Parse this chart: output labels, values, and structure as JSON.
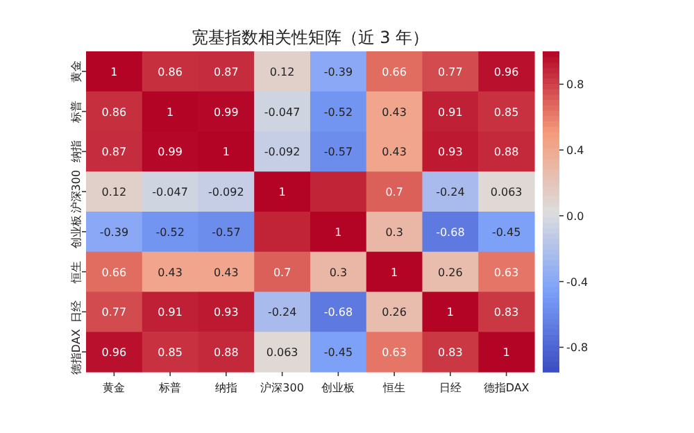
{
  "chart_data": {
    "type": "heatmap",
    "title": "宽基指数相关性矩阵（近 3 年）",
    "categories": [
      "黄金",
      "标普",
      "纳指",
      "沪深300",
      "创业板",
      "恒生",
      "日经",
      "德指DAX"
    ],
    "y_categories": [
      "黄金",
      "标普",
      "纳指",
      "沪深300",
      "创业板",
      "恒生",
      "日经",
      "德指DAX"
    ],
    "cells": [
      [
        1,
        0.86,
        0.87,
        0.12,
        -0.39,
        0.66,
        0.77,
        0.96
      ],
      [
        0.86,
        1,
        0.99,
        -0.047,
        -0.52,
        0.43,
        0.91,
        0.85
      ],
      [
        0.87,
        0.99,
        1,
        -0.092,
        -0.57,
        0.43,
        0.93,
        0.88
      ],
      [
        0.12,
        -0.047,
        -0.092,
        1,
        0.9,
        0.7,
        -0.24,
        0.063
      ],
      [
        -0.39,
        -0.52,
        -0.57,
        0.9,
        1,
        0.3,
        -0.68,
        -0.45
      ],
      [
        0.66,
        0.43,
        0.43,
        0.7,
        0.3,
        1,
        0.26,
        0.63
      ],
      [
        0.77,
        0.91,
        0.93,
        -0.24,
        -0.68,
        0.26,
        1,
        0.83
      ],
      [
        0.96,
        0.85,
        0.88,
        0.063,
        -0.45,
        0.63,
        0.83,
        1
      ]
    ],
    "cell_labels": [
      [
        "1",
        "0.86",
        "0.87",
        "0.12",
        "-0.39",
        "0.66",
        "0.77",
        "0.96"
      ],
      [
        "0.86",
        "1",
        "0.99",
        "-0.047",
        "-0.52",
        "0.43",
        "0.91",
        "0.85"
      ],
      [
        "0.87",
        "0.99",
        "1",
        "-0.092",
        "-0.57",
        "0.43",
        "0.93",
        "0.88"
      ],
      [
        "0.12",
        "-0.047",
        "-0.092",
        "1",
        null,
        "0.7",
        "-0.24",
        "0.063"
      ],
      [
        "-0.39",
        "-0.52",
        "-0.57",
        null,
        "1",
        "0.3",
        "-0.68",
        "-0.45"
      ],
      [
        "0.66",
        "0.43",
        "0.43",
        "0.7",
        "0.3",
        "1",
        "0.26",
        "0.63"
      ],
      [
        "0.77",
        "0.91",
        "0.93",
        "-0.24",
        "-0.68",
        "0.26",
        "1",
        "0.83"
      ],
      [
        "0.96",
        "0.85",
        "0.88",
        "0.063",
        "-0.45",
        "0.63",
        "0.83",
        "1"
      ]
    ],
    "clim": [
      -0.95,
      1
    ],
    "cticks": [
      {
        "value": 0.8,
        "label": "0.8"
      },
      {
        "value": 0.4,
        "label": "0.4"
      },
      {
        "value": 0,
        "label": "0.0"
      },
      {
        "value": -0.4,
        "label": "-0.4"
      },
      {
        "value": -0.8,
        "label": "-0.8"
      }
    ]
  }
}
